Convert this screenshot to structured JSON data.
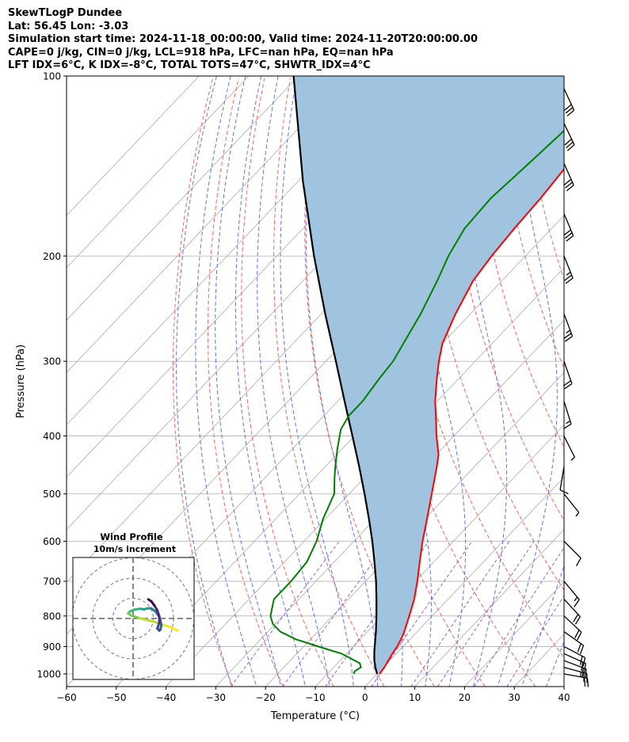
{
  "header": {
    "line1": "SkewTLogP Dundee",
    "line2": "Lat: 56.45   Lon: -3.03",
    "line3": "Simulation start time: 2024-11-18_00:00:00, Valid time: 2024-11-20T20:00:00.00",
    "line4": "CAPE=0 j/kg, CIN=0 j/kg, LCL=918 hPa, LFC=nan hPa, EQ=nan hPa",
    "line5": "LFT IDX=6°C, K IDX=-8°C, TOTAL TOTS=47°C, SHWTR_IDX=4°C"
  },
  "chart_data": {
    "type": "line",
    "subtype": "skew-t log-p",
    "xlabel": "Temperature (°C)",
    "ylabel": "Pressure (hPa)",
    "xlim": [
      -60,
      40
    ],
    "ylim": [
      1050,
      100
    ],
    "y_scale": "log",
    "x_ticks": [
      -60,
      -50,
      -40,
      -30,
      -20,
      -10,
      0,
      10,
      20,
      30,
      40
    ],
    "x_tick_labels": [
      "−60",
      "−50",
      "−40",
      "−30",
      "−20",
      "−10",
      "0",
      "10",
      "20",
      "30",
      "40"
    ],
    "y_ticks": [
      1000,
      900,
      800,
      700,
      600,
      500,
      400,
      300,
      200,
      100
    ],
    "y_tick_labels": [
      "1000",
      "900",
      "800",
      "700",
      "600",
      "500",
      "400",
      "300",
      "200",
      "100"
    ],
    "grid": true,
    "colors": {
      "temperature": "#ff0000",
      "dewpoint": "#008000",
      "parcel": "#000000",
      "fill": "#a0c4e0",
      "dry_adiabat": "#ff6060",
      "moist_adiabat": "#6070ff",
      "mixing_ratio": "#9050d0",
      "isotherm": "#aaaaaa"
    },
    "series": [
      {
        "key": "temperature",
        "points": [
          [
            1000,
            0.5
          ],
          [
            975,
            0.2
          ],
          [
            950,
            -0.3
          ],
          [
            925,
            -0.8
          ],
          [
            900,
            -1.2
          ],
          [
            875,
            -1.8
          ],
          [
            850,
            -2.6
          ],
          [
            800,
            -4.6
          ],
          [
            750,
            -6.8
          ],
          [
            700,
            -9.6
          ],
          [
            650,
            -12.8
          ],
          [
            600,
            -16.2
          ],
          [
            550,
            -19.6
          ],
          [
            500,
            -23.4
          ],
          [
            450,
            -27.6
          ],
          [
            430,
            -29.5
          ],
          [
            400,
            -33.5
          ],
          [
            370,
            -37.5
          ],
          [
            350,
            -40.4
          ],
          [
            320,
            -44.5
          ],
          [
            300,
            -47.3
          ],
          [
            280,
            -50.0
          ],
          [
            250,
            -53.0
          ],
          [
            220,
            -55.8
          ],
          [
            200,
            -56.8
          ],
          [
            180,
            -57.5
          ],
          [
            160,
            -58.0
          ],
          [
            140,
            -59.0
          ],
          [
            120,
            -60.5
          ],
          [
            100,
            -62.0
          ]
        ]
      },
      {
        "key": "dewpoint",
        "points": [
          [
            1000,
            -4.7
          ],
          [
            990,
            -5.0
          ],
          [
            975,
            -4.5
          ],
          [
            960,
            -5.5
          ],
          [
            950,
            -7.0
          ],
          [
            925,
            -11.0
          ],
          [
            900,
            -17.0
          ],
          [
            875,
            -23.0
          ],
          [
            850,
            -27.5
          ],
          [
            825,
            -30.5
          ],
          [
            800,
            -32.5
          ],
          [
            750,
            -35.0
          ],
          [
            700,
            -35.0
          ],
          [
            650,
            -35.5
          ],
          [
            600,
            -37.5
          ],
          [
            550,
            -40.5
          ],
          [
            500,
            -43.0
          ],
          [
            470,
            -46.0
          ],
          [
            450,
            -48.0
          ],
          [
            420,
            -51.0
          ],
          [
            390,
            -54.0
          ],
          [
            370,
            -55.0
          ],
          [
            350,
            -55.0
          ],
          [
            320,
            -56.0
          ],
          [
            300,
            -56.5
          ],
          [
            250,
            -60.0
          ],
          [
            220,
            -63.0
          ],
          [
            200,
            -65.5
          ],
          [
            180,
            -67.5
          ],
          [
            160,
            -68.0
          ],
          [
            140,
            -67.0
          ],
          [
            120,
            -66.0
          ],
          [
            100,
            -66.5
          ]
        ]
      },
      {
        "key": "parcel",
        "points": [
          [
            1000,
            0.0
          ],
          [
            975,
            -1.6
          ],
          [
            950,
            -3.1
          ],
          [
            918,
            -4.8
          ],
          [
            900,
            -5.7
          ],
          [
            850,
            -8.3
          ],
          [
            800,
            -11.2
          ],
          [
            750,
            -14.4
          ],
          [
            700,
            -17.9
          ],
          [
            650,
            -21.9
          ],
          [
            600,
            -26.3
          ],
          [
            550,
            -31.3
          ],
          [
            500,
            -36.9
          ],
          [
            450,
            -43.2
          ],
          [
            400,
            -50.4
          ],
          [
            350,
            -58.6
          ],
          [
            300,
            -68.0
          ],
          [
            250,
            -79.2
          ],
          [
            200,
            -92.5
          ],
          [
            150,
            -109.0
          ],
          [
            100,
            -131.0
          ]
        ]
      }
    ],
    "wind_barbs": [
      {
        "p": 1000,
        "u": -22,
        "v": 4
      },
      {
        "p": 975,
        "u": -22,
        "v": 6
      },
      {
        "p": 950,
        "u": -21,
        "v": 8
      },
      {
        "p": 925,
        "u": -20,
        "v": 9
      },
      {
        "p": 900,
        "u": -19,
        "v": 10
      },
      {
        "p": 850,
        "u": -17,
        "v": 12
      },
      {
        "p": 800,
        "u": -15,
        "v": 14
      },
      {
        "p": 750,
        "u": -13,
        "v": 14
      },
      {
        "p": 700,
        "u": -10,
        "v": 12
      },
      {
        "p": 600,
        "u": -8,
        "v": 8
      },
      {
        "p": 500,
        "u": -4,
        "v": 5
      },
      {
        "p": 450,
        "u": 2,
        "v": 12
      },
      {
        "p": 400,
        "u": -3,
        "v": 6
      },
      {
        "p": 350,
        "u": -5,
        "v": 16
      },
      {
        "p": 300,
        "u": -7,
        "v": 20
      },
      {
        "p": 250,
        "u": -9,
        "v": 24
      },
      {
        "p": 200,
        "u": -10,
        "v": 25
      },
      {
        "p": 170,
        "u": -11,
        "v": 26
      },
      {
        "p": 140,
        "u": -12,
        "v": 27
      },
      {
        "p": 120,
        "u": -13,
        "v": 27
      },
      {
        "p": 105,
        "u": -13,
        "v": 28
      }
    ],
    "hodograph": {
      "title": "Wind Profile",
      "subtitle": "10m/s increment",
      "rings": [
        10,
        20,
        30
      ],
      "points": [
        [
          22,
          -6
        ],
        [
          19,
          -4.5
        ],
        [
          16,
          -3.5
        ],
        [
          13,
          -2.5
        ],
        [
          10,
          -1.5
        ],
        [
          6,
          -0.5
        ],
        [
          2,
          0.5
        ],
        [
          -1,
          1.5
        ],
        [
          -2.5,
          2.5
        ],
        [
          -1.5,
          3.5
        ],
        [
          1,
          4.5
        ],
        [
          3.5,
          4.8
        ],
        [
          5.5,
          4.5
        ],
        [
          7,
          5.0
        ],
        [
          9,
          5.0
        ],
        [
          11,
          3.5
        ],
        [
          12.5,
          1.5
        ],
        [
          13.5,
          -1.0
        ],
        [
          14,
          -3.5
        ],
        [
          13.5,
          -5.5
        ],
        [
          13,
          -6.0
        ],
        [
          12,
          -5.0
        ],
        [
          13,
          -2.0
        ],
        [
          13,
          1.0
        ],
        [
          12,
          4.0
        ],
        [
          10.5,
          6.5
        ],
        [
          9,
          8.5
        ],
        [
          7.5,
          9.5
        ]
      ]
    }
  }
}
